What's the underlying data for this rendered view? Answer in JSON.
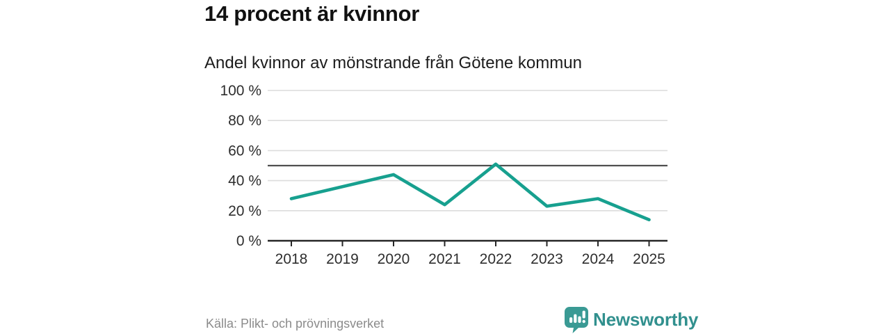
{
  "header": {
    "title": "14 procent är kvinnor",
    "subtitle": "Andel kvinnor av mönstrande från Götene kommun"
  },
  "chart_data": {
    "type": "line",
    "title": "14 procent är kvinnor",
    "subtitle": "Andel kvinnor av mönstrande från Götene kommun",
    "categories": [
      "2018",
      "2019",
      "2020",
      "2021",
      "2022",
      "2023",
      "2024",
      "2025"
    ],
    "values": [
      28,
      36,
      44,
      24,
      51,
      23,
      28,
      14
    ],
    "unit": "%",
    "ylim": [
      0,
      100
    ],
    "y_tick_values": [
      0,
      20,
      40,
      60,
      80,
      100
    ],
    "y_tick_labels": [
      "0 %",
      "20 %",
      "40 %",
      "60 %",
      "80 %",
      "100 %"
    ],
    "reference_line": 50,
    "grid": true,
    "legend": "none"
  },
  "colors": {
    "line": "#17a08f",
    "reference_line": "#4f4f4f",
    "gridline": "#dcdcdc",
    "axis": "#262626",
    "tick_text": "#2e2e2e",
    "title_text": "#111111",
    "source_text": "#8b8b8b",
    "brand": "#31908e"
  },
  "footer": {
    "source": "Källa: Plikt- och prövningsverket",
    "brand": "Newsworthy"
  }
}
